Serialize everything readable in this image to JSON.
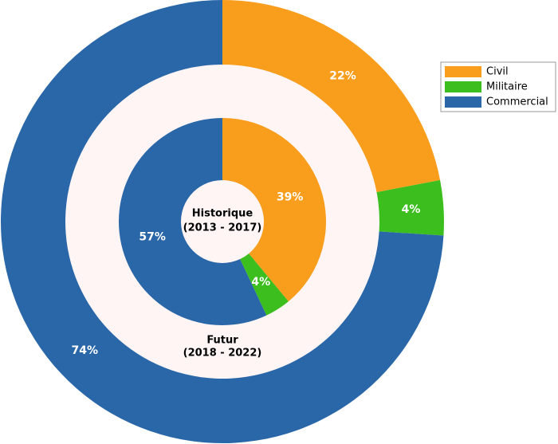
{
  "chart_data": {
    "type": "nested-donut",
    "categories": [
      "Civil",
      "Militaire",
      "Commercial"
    ],
    "colors": [
      "#f99d1c",
      "#3cbf1e",
      "#2a67a8"
    ],
    "rings": [
      {
        "label": "Historique",
        "period": "(2013 - 2017)",
        "values": [
          39,
          4,
          57
        ],
        "value_labels": [
          "39%",
          "4%",
          "57%"
        ]
      },
      {
        "label": "Futur",
        "period": "(2018 - 2022)",
        "values": [
          22,
          4,
          74
        ],
        "value_labels": [
          "22%",
          "4%",
          "74%"
        ]
      }
    ],
    "legend": "upper right"
  }
}
